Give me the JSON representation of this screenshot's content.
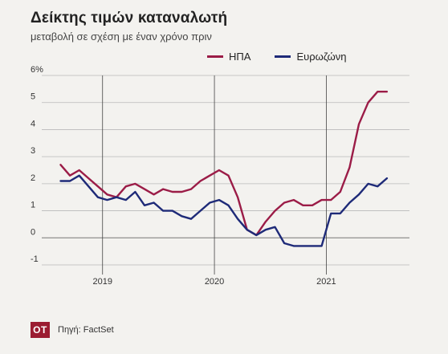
{
  "header": {
    "title": "Δείκτης τιμών καταναλωτή",
    "subtitle": "μεταβολή σε σχέση με έναν χρόνο πριν"
  },
  "footer": {
    "logo_text": "OT",
    "source": "Πηγή: FactSet"
  },
  "chart_data": {
    "type": "line",
    "ylim": [
      -1,
      6
    ],
    "yticks": [
      -1,
      0,
      1,
      2,
      3,
      4,
      5,
      6
    ],
    "ytick_labels": [
      "-1",
      "0",
      "1",
      "2",
      "3",
      "4",
      "5",
      "6%"
    ],
    "xlim": [
      "2018-08",
      "2021-07"
    ],
    "xticks": [
      "2019-01",
      "2020-01",
      "2021-01"
    ],
    "xtick_labels": [
      "2019",
      "2020",
      "2021"
    ],
    "grid": true,
    "legend_position": "top-right",
    "series": [
      {
        "name": "ΗΠΑ",
        "color": "#9b1c47",
        "x": [
          "2018-08",
          "2018-09",
          "2018-10",
          "2018-11",
          "2018-12",
          "2019-01",
          "2019-02",
          "2019-03",
          "2019-04",
          "2019-05",
          "2019-06",
          "2019-07",
          "2019-08",
          "2019-09",
          "2019-10",
          "2019-11",
          "2019-12",
          "2020-01",
          "2020-02",
          "2020-03",
          "2020-04",
          "2020-05",
          "2020-06",
          "2020-07",
          "2020-08",
          "2020-09",
          "2020-10",
          "2020-11",
          "2020-12",
          "2021-01",
          "2021-02",
          "2021-03",
          "2021-04",
          "2021-05",
          "2021-06",
          "2021-07"
        ],
        "values": [
          2.7,
          2.3,
          2.5,
          2.2,
          1.9,
          1.6,
          1.5,
          1.9,
          2.0,
          1.8,
          1.6,
          1.8,
          1.7,
          1.7,
          1.8,
          2.1,
          2.3,
          2.5,
          2.3,
          1.5,
          0.3,
          0.1,
          0.6,
          1.0,
          1.3,
          1.4,
          1.2,
          1.2,
          1.4,
          1.4,
          1.7,
          2.6,
          4.2,
          5.0,
          5.4,
          5.4
        ]
      },
      {
        "name": "Ευρωζώνη",
        "color": "#1e2a78",
        "x": [
          "2018-08",
          "2018-09",
          "2018-10",
          "2018-11",
          "2018-12",
          "2019-01",
          "2019-02",
          "2019-03",
          "2019-04",
          "2019-05",
          "2019-06",
          "2019-07",
          "2019-08",
          "2019-09",
          "2019-10",
          "2019-11",
          "2019-12",
          "2020-01",
          "2020-02",
          "2020-03",
          "2020-04",
          "2020-05",
          "2020-06",
          "2020-07",
          "2020-08",
          "2020-09",
          "2020-10",
          "2020-11",
          "2020-12",
          "2021-01",
          "2021-02",
          "2021-03",
          "2021-04",
          "2021-05",
          "2021-06",
          "2021-07"
        ],
        "values": [
          2.1,
          2.1,
          2.3,
          1.9,
          1.5,
          1.4,
          1.5,
          1.4,
          1.7,
          1.2,
          1.3,
          1.0,
          1.0,
          0.8,
          0.7,
          1.0,
          1.3,
          1.4,
          1.2,
          0.7,
          0.3,
          0.1,
          0.3,
          0.4,
          -0.2,
          -0.3,
          -0.3,
          -0.3,
          -0.3,
          0.9,
          0.9,
          1.3,
          1.6,
          2.0,
          1.9,
          2.2
        ]
      }
    ]
  }
}
